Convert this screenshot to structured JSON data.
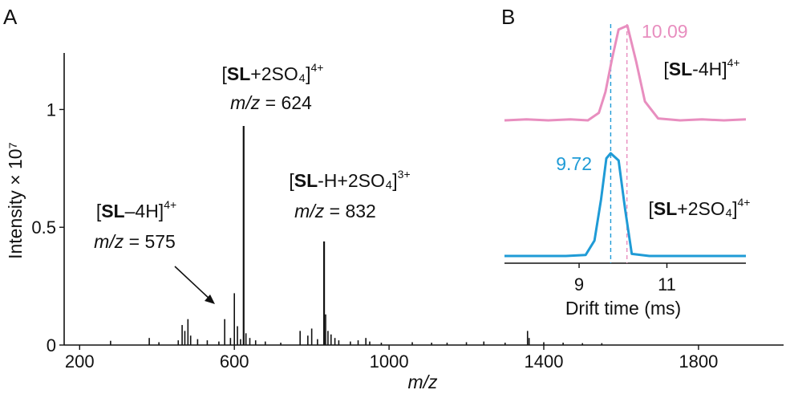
{
  "panels": {
    "a": "A",
    "b": "B"
  },
  "chart_data": [
    {
      "type": "line",
      "panel": "A",
      "xlabel": "m/z",
      "ylabel": "Intensity × 10⁷",
      "xlim": [
        160,
        2020
      ],
      "ylim": [
        0,
        1.24
      ],
      "xticks": [
        "200",
        "600",
        "1000",
        "1400",
        "1800"
      ],
      "yticks": [
        "0",
        "0.5",
        "1"
      ],
      "peaks": [
        {
          "x": 280,
          "y": 0.018
        },
        {
          "x": 380,
          "y": 0.03
        },
        {
          "x": 405,
          "y": 0.012
        },
        {
          "x": 455,
          "y": 0.02
        },
        {
          "x": 465,
          "y": 0.085
        },
        {
          "x": 472,
          "y": 0.06
        },
        {
          "x": 480,
          "y": 0.11
        },
        {
          "x": 487,
          "y": 0.04
        },
        {
          "x": 505,
          "y": 0.025
        },
        {
          "x": 530,
          "y": 0.02
        },
        {
          "x": 560,
          "y": 0.015
        },
        {
          "x": 575,
          "y": 0.11
        },
        {
          "x": 590,
          "y": 0.03
        },
        {
          "x": 600,
          "y": 0.22
        },
        {
          "x": 608,
          "y": 0.08
        },
        {
          "x": 616,
          "y": 0.025
        },
        {
          "x": 624,
          "y": 0.93
        },
        {
          "x": 630,
          "y": 0.05
        },
        {
          "x": 640,
          "y": 0.03
        },
        {
          "x": 655,
          "y": 0.02
        },
        {
          "x": 680,
          "y": 0.015
        },
        {
          "x": 720,
          "y": 0.01
        },
        {
          "x": 770,
          "y": 0.06
        },
        {
          "x": 790,
          "y": 0.04
        },
        {
          "x": 800,
          "y": 0.07
        },
        {
          "x": 815,
          "y": 0.025
        },
        {
          "x": 832,
          "y": 0.44
        },
        {
          "x": 836,
          "y": 0.13
        },
        {
          "x": 842,
          "y": 0.06
        },
        {
          "x": 850,
          "y": 0.045
        },
        {
          "x": 860,
          "y": 0.03
        },
        {
          "x": 870,
          "y": 0.02
        },
        {
          "x": 900,
          "y": 0.015
        },
        {
          "x": 920,
          "y": 0.02
        },
        {
          "x": 940,
          "y": 0.03
        },
        {
          "x": 950,
          "y": 0.015
        },
        {
          "x": 980,
          "y": 0.01
        },
        {
          "x": 1060,
          "y": 0.012
        },
        {
          "x": 1110,
          "y": 0.01
        },
        {
          "x": 1150,
          "y": 0.01
        },
        {
          "x": 1200,
          "y": 0.012
        },
        {
          "x": 1245,
          "y": 0.015
        },
        {
          "x": 1300,
          "y": 0.01
        },
        {
          "x": 1358,
          "y": 0.06
        },
        {
          "x": 1362,
          "y": 0.03
        },
        {
          "x": 1400,
          "y": 0.012
        },
        {
          "x": 1450,
          "y": 0.01
        },
        {
          "x": 1500,
          "y": 0.008
        },
        {
          "x": 1550,
          "y": 0.008
        }
      ],
      "annotations": [
        {
          "species": "SL",
          "ion": "+2SO₄]",
          "charge": "4+",
          "mz_label": "m/z",
          "mz_value": "= 624",
          "peak_mz": 624
        },
        {
          "species": "SL",
          "ion": "-H+2SO₄]",
          "charge": "3+",
          "mz_label": "m/z",
          "mz_value": "= 832",
          "peak_mz": 832
        },
        {
          "species": "SL",
          "ion": "–4H]",
          "charge": "4+",
          "mz_label": "m/z",
          "mz_value": "= 575",
          "peak_mz": 575
        }
      ]
    },
    {
      "type": "line",
      "panel": "B",
      "xlabel": "Drift time (ms)",
      "xlim": [
        7.3,
        12.8
      ],
      "xticks": [
        "9",
        "11"
      ],
      "series": [
        {
          "name": "[SL-4H]4+",
          "color": "#e88ebf",
          "peak_label": "10.09",
          "apex": 10.09,
          "x": [
            7.3,
            7.8,
            8.3,
            8.8,
            9.2,
            9.45,
            9.6,
            9.75,
            9.9,
            10.1,
            10.3,
            10.5,
            10.8,
            11.3,
            11.8,
            12.3,
            12.8
          ],
          "y": [
            0.0,
            0.01,
            0.0,
            0.01,
            0.0,
            0.08,
            0.3,
            0.65,
            0.96,
            1.0,
            0.62,
            0.2,
            0.02,
            0.0,
            0.01,
            0.0,
            0.01
          ]
        },
        {
          "name": "[SL+2SO4]4+",
          "color": "#1f9bd6",
          "peak_label": "9.72",
          "apex": 9.72,
          "x": [
            7.3,
            8.0,
            8.7,
            9.15,
            9.35,
            9.5,
            9.62,
            9.72,
            9.9,
            10.05,
            10.2,
            10.6,
            11.2,
            12.0,
            12.8
          ],
          "y": [
            0.0,
            0.0,
            0.0,
            0.01,
            0.15,
            0.55,
            0.95,
            1.0,
            0.93,
            0.45,
            0.02,
            0.0,
            0.0,
            0.0,
            0.0
          ]
        }
      ]
    }
  ]
}
